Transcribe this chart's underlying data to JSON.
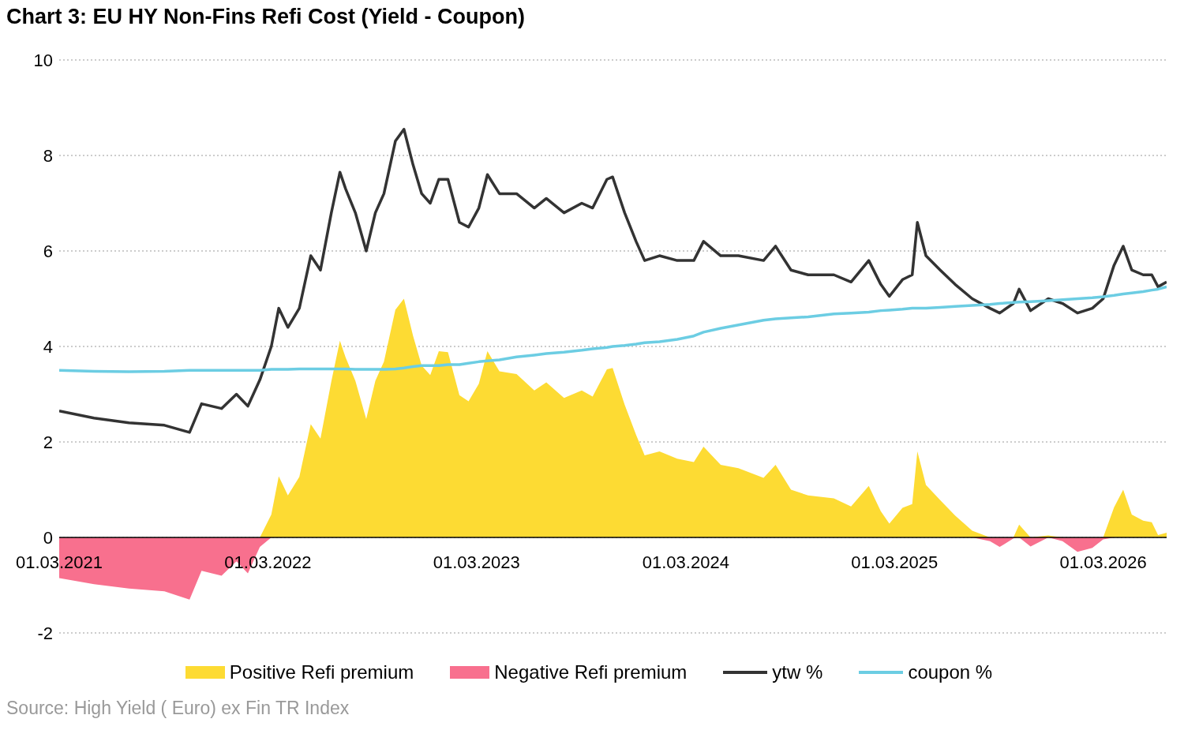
{
  "chart_data": {
    "type": "line",
    "title": "Chart 3: EU HY Non-Fins Refi Cost (Yield - Coupon)",
    "annotations": [
      "Source: High Yield ( Euro) ex Fin TR Index"
    ],
    "x": [
      "2021-03-01",
      "2021-05-01",
      "2021-07-01",
      "2021-09-01",
      "2021-10-15",
      "2021-11-05",
      "2021-12-10",
      "2022-01-05",
      "2022-01-25",
      "2022-02-15",
      "2022-03-07",
      "2022-03-20",
      "2022-04-05",
      "2022-04-25",
      "2022-05-15",
      "2022-06-01",
      "2022-06-20",
      "2022-07-05",
      "2022-07-15",
      "2022-08-01",
      "2022-08-20",
      "2022-09-05",
      "2022-09-20",
      "2022-10-10",
      "2022-10-25",
      "2022-11-10",
      "2022-11-25",
      "2022-12-10",
      "2022-12-25",
      "2023-01-10",
      "2023-01-30",
      "2023-02-15",
      "2023-03-05",
      "2023-03-20",
      "2023-04-10",
      "2023-05-10",
      "2023-06-10",
      "2023-07-01",
      "2023-08-01",
      "2023-09-01",
      "2023-09-20",
      "2023-10-15",
      "2023-10-25",
      "2023-11-15",
      "2023-12-05",
      "2023-12-20",
      "2024-01-15",
      "2024-02-15",
      "2024-03-15",
      "2024-04-01",
      "2024-05-01",
      "2024-06-01",
      "2024-07-15",
      "2024-08-05",
      "2024-09-01",
      "2024-10-01",
      "2024-11-15",
      "2024-12-15",
      "2025-01-15",
      "2025-02-05",
      "2025-02-20",
      "2025-03-15",
      "2025-04-01",
      "2025-04-10",
      "2025-04-25",
      "2025-05-20",
      "2025-06-15",
      "2025-07-15",
      "2025-08-15",
      "2025-09-01",
      "2025-09-25",
      "2025-10-05",
      "2025-10-25",
      "2025-11-25",
      "2025-12-20",
      "2026-01-15",
      "2026-02-10",
      "2026-03-01",
      "2026-03-20",
      "2026-04-05",
      "2026-04-20",
      "2026-05-10",
      "2026-05-25",
      "2026-06-05",
      "2026-06-20"
    ],
    "series": [
      {
        "name": "Positive Refi premium",
        "type": "area",
        "color": "#fddb33",
        "values": [
          0,
          0,
          0,
          0,
          0,
          0,
          0,
          0,
          0,
          0,
          0.48,
          1.28,
          0.88,
          1.27,
          2.37,
          2.07,
          3.27,
          4.12,
          3.77,
          3.28,
          2.48,
          3.28,
          3.68,
          4.77,
          5.0,
          4.22,
          3.6,
          3.4,
          3.9,
          3.88,
          2.98,
          2.85,
          3.22,
          3.9,
          3.48,
          3.42,
          3.08,
          3.25,
          2.92,
          3.08,
          2.95,
          3.52,
          3.55,
          2.78,
          2.15,
          1.72,
          1.8,
          1.65,
          1.58,
          1.9,
          1.52,
          1.45,
          1.25,
          1.52,
          1.0,
          0.88,
          0.82,
          0.65,
          1.08,
          0.55,
          0.29,
          0.62,
          0.7,
          1.8,
          1.1,
          0.78,
          0.46,
          0.14,
          0,
          0,
          0,
          0.27,
          0,
          0.04,
          0,
          0,
          0,
          0,
          0.63,
          1.0,
          0.48,
          0.35,
          0.32,
          0.05,
          0.1
        ]
      },
      {
        "name": "Negative Refi premium",
        "type": "area",
        "color": "#f8708e",
        "values": [
          -0.85,
          -0.98,
          -1.07,
          -1.13,
          -1.3,
          -0.7,
          -0.8,
          -0.5,
          -0.75,
          -0.2,
          0,
          0,
          0,
          0,
          0,
          0,
          0,
          0,
          0,
          0,
          0,
          0,
          0,
          0,
          0,
          0,
          0,
          0,
          0,
          0,
          0,
          0,
          0,
          0,
          0,
          0,
          0,
          0,
          0,
          0,
          0,
          0,
          0,
          0,
          0,
          0,
          0,
          0,
          0,
          0,
          0,
          0,
          0,
          0,
          0,
          0,
          0,
          0,
          0,
          0,
          0,
          0,
          0,
          0,
          0,
          0,
          0,
          0,
          -0.08,
          -0.2,
          -0.02,
          0,
          -0.19,
          0,
          -0.08,
          -0.3,
          -0.22,
          -0.04,
          0,
          0,
          0,
          0,
          0,
          0,
          0
        ]
      },
      {
        "name": "ytw %",
        "color": "#333333",
        "values": [
          2.65,
          2.5,
          2.4,
          2.35,
          2.2,
          2.8,
          2.7,
          3.0,
          2.75,
          3.3,
          4.0,
          4.8,
          4.4,
          4.8,
          5.9,
          5.6,
          6.8,
          7.65,
          7.3,
          6.8,
          6.0,
          6.8,
          7.2,
          8.3,
          8.55,
          7.8,
          7.2,
          7.0,
          7.5,
          7.5,
          6.6,
          6.5,
          6.9,
          7.6,
          7.2,
          7.2,
          6.9,
          7.1,
          6.8,
          7.0,
          6.9,
          7.5,
          7.55,
          6.8,
          6.2,
          5.8,
          5.9,
          5.8,
          5.8,
          6.2,
          5.9,
          5.9,
          5.8,
          6.1,
          5.6,
          5.5,
          5.5,
          5.35,
          5.8,
          5.3,
          5.05,
          5.4,
          5.5,
          6.6,
          5.9,
          5.6,
          5.3,
          5.0,
          4.8,
          4.7,
          4.9,
          5.2,
          4.75,
          5.0,
          4.9,
          4.7,
          4.8,
          5.0,
          5.7,
          6.1,
          5.6,
          5.5,
          5.5,
          5.25,
          5.35
        ]
      },
      {
        "name": "coupon %",
        "color": "#6ccde3",
        "values": [
          3.5,
          3.48,
          3.47,
          3.48,
          3.5,
          3.5,
          3.5,
          3.5,
          3.5,
          3.5,
          3.52,
          3.52,
          3.52,
          3.53,
          3.53,
          3.53,
          3.53,
          3.53,
          3.53,
          3.52,
          3.52,
          3.52,
          3.52,
          3.53,
          3.55,
          3.58,
          3.6,
          3.6,
          3.6,
          3.62,
          3.62,
          3.65,
          3.68,
          3.7,
          3.72,
          3.78,
          3.82,
          3.85,
          3.88,
          3.92,
          3.95,
          3.98,
          4.0,
          4.02,
          4.05,
          4.08,
          4.1,
          4.15,
          4.22,
          4.3,
          4.38,
          4.45,
          4.55,
          4.58,
          4.6,
          4.62,
          4.68,
          4.7,
          4.72,
          4.75,
          4.76,
          4.78,
          4.8,
          4.8,
          4.8,
          4.82,
          4.84,
          4.86,
          4.88,
          4.9,
          4.92,
          4.93,
          4.94,
          4.96,
          4.98,
          5.0,
          5.02,
          5.04,
          5.07,
          5.1,
          5.12,
          5.15,
          5.18,
          5.2,
          5.25
        ]
      }
    ],
    "xlim": [
      "2021-03-01",
      "2026-06-20"
    ],
    "xticks": [
      {
        "value": "2021-03-01",
        "label": "01.03.2021"
      },
      {
        "value": "2022-03-01",
        "label": "01.03.2022"
      },
      {
        "value": "2023-03-01",
        "label": "01.03.2023"
      },
      {
        "value": "2024-03-01",
        "label": "01.03.2024"
      },
      {
        "value": "2025-03-01",
        "label": "01.03.2025"
      },
      {
        "value": "2026-03-01",
        "label": "01.03.2026"
      }
    ],
    "ylim": [
      -2,
      10
    ],
    "yticks": [
      -2,
      0,
      2,
      4,
      6,
      8,
      10
    ],
    "grid": "y",
    "legend": "bottom"
  }
}
